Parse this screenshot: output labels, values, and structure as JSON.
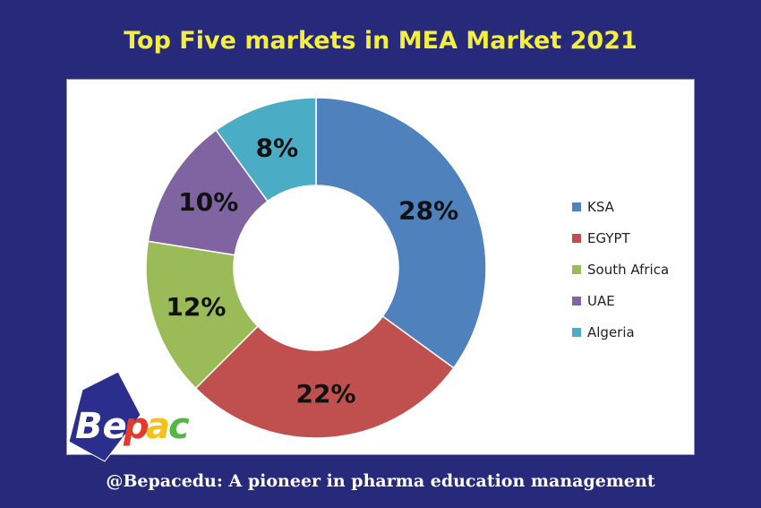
{
  "title": "Top Five markets in MEA Market 2021",
  "footer": "@Bepacedu: A pioneer in pharma education management",
  "logo": {
    "text_b": "Be",
    "text_p": "p",
    "text_a": "a",
    "text_c": "c"
  },
  "chart_data": {
    "type": "pie",
    "variant": "donut",
    "categories": [
      "KSA",
      "EGYPT",
      "South Africa",
      "UAE",
      "Algeria"
    ],
    "values": [
      28,
      22,
      12,
      10,
      8
    ],
    "labels": [
      "28%",
      "22%",
      "12%",
      "10%",
      "8%"
    ],
    "colors": [
      "#4f81bd",
      "#c0504d",
      "#9bbb59",
      "#8064a2",
      "#4bacc6"
    ],
    "legend_position": "right",
    "title": "Top Five markets in MEA Market 2021"
  }
}
